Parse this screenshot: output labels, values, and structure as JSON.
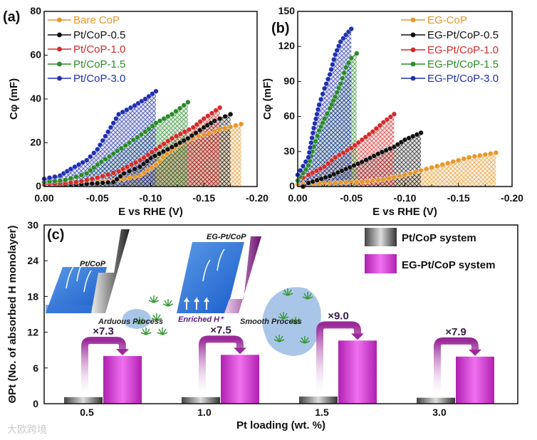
{
  "chart_data": [
    {
      "panel": "(a)",
      "type": "line",
      "xlabel": "E vs RHE (V)",
      "ylabel": "Cφ (mF)",
      "xlim": [
        0,
        -0.2
      ],
      "ylim": [
        0,
        80
      ],
      "xticks": [
        0,
        -0.05,
        -0.1,
        -0.15,
        -0.2
      ],
      "xtick_labels": [
        "0.00",
        "-0.05",
        "-0.10",
        "-0.15",
        "-0.20"
      ],
      "yticks": [
        0,
        20,
        40,
        60,
        80
      ],
      "ytick_labels": [
        "0",
        "20",
        "40",
        "60",
        "80"
      ],
      "legend_position": "top-left",
      "fill": "crosshatch-under-curve",
      "series": [
        {
          "name": "Bare CoP",
          "color": "#e8972a",
          "x": [
            0,
            -0.02,
            -0.05,
            -0.07,
            -0.09,
            -0.105,
            -0.115,
            -0.13,
            -0.145,
            -0.165,
            -0.185
          ],
          "y": [
            1,
            1.5,
            2,
            3,
            5,
            10,
            15,
            20,
            23,
            26,
            28.5
          ]
        },
        {
          "name": "Pt/CoP-0.5",
          "color": "#111111",
          "x": [
            0,
            -0.03,
            -0.05,
            -0.065,
            -0.075,
            -0.09,
            -0.1,
            -0.12,
            -0.135,
            -0.15,
            -0.16,
            -0.175
          ],
          "y": [
            1,
            1,
            1.5,
            2,
            6,
            9,
            13,
            18,
            22,
            27,
            30,
            33
          ]
        },
        {
          "name": "Pt/CoP-1.0",
          "color": "#d42a2a",
          "x": [
            0,
            -0.03,
            -0.05,
            -0.07,
            -0.09,
            -0.105,
            -0.12,
            -0.14,
            -0.15,
            -0.165
          ],
          "y": [
            1,
            2,
            4,
            7,
            12,
            17,
            22,
            27,
            31,
            36
          ]
        },
        {
          "name": "Pt/CoP-1.5",
          "color": "#2a8a2a",
          "x": [
            0,
            -0.02,
            -0.04,
            -0.05,
            -0.065,
            -0.08,
            -0.095,
            -0.105,
            -0.12,
            -0.135
          ],
          "y": [
            2,
            3,
            6,
            10,
            15,
            20,
            25,
            29,
            33,
            38.5
          ]
        },
        {
          "name": "Pt/CoP-3.0",
          "color": "#2030b0",
          "x": [
            0,
            -0.015,
            -0.025,
            -0.04,
            -0.05,
            -0.06,
            -0.07,
            -0.085,
            -0.095,
            -0.105
          ],
          "y": [
            3.5,
            5,
            8,
            12,
            17,
            25,
            33,
            37,
            40,
            43.5
          ]
        }
      ]
    },
    {
      "panel": "(b)",
      "type": "line",
      "xlabel": "E vs RHE (V)",
      "ylabel": "Cφ (mF)",
      "xlim": [
        0,
        -0.2
      ],
      "ylim": [
        0,
        150
      ],
      "xticks": [
        0,
        -0.05,
        -0.1,
        -0.15,
        -0.2
      ],
      "xtick_labels": [
        "0.00",
        "-0.05",
        "-0.10",
        "-0.15",
        "-0.20"
      ],
      "yticks": [
        0,
        30,
        60,
        90,
        120,
        150
      ],
      "ytick_labels": [
        "0",
        "30",
        "60",
        "90",
        "120",
        "150"
      ],
      "legend_position": "top-right",
      "fill": "crosshatch-under-curve",
      "series": [
        {
          "name": "EG-CoP",
          "color": "#e8972a",
          "x": [
            0,
            -0.03,
            -0.06,
            -0.08,
            -0.1,
            -0.12,
            -0.14,
            -0.16,
            -0.185
          ],
          "y": [
            2,
            3,
            4,
            6,
            10,
            15,
            20,
            25,
            29
          ]
        },
        {
          "name": "EG-Pt/CoP-0.5",
          "color": "#111111",
          "x": [
            -0.005,
            -0.01,
            -0.03,
            -0.045,
            -0.06,
            -0.075,
            -0.09,
            -0.1,
            -0.115
          ],
          "y": [
            0,
            3,
            9,
            15,
            21,
            28,
            34,
            40,
            46
          ]
        },
        {
          "name": "EG-Pt/CoP-1.0",
          "color": "#d42a2a",
          "x": [
            0,
            -0.01,
            -0.025,
            -0.035,
            -0.05,
            -0.06,
            -0.07,
            -0.08,
            -0.09
          ],
          "y": [
            5,
            10,
            17,
            25,
            33,
            40,
            47,
            55,
            62
          ]
        },
        {
          "name": "EG-Pt/CoP-1.5",
          "color": "#2a8a2a",
          "x": [
            0,
            -0.01,
            -0.015,
            -0.02,
            -0.025,
            -0.03,
            -0.035,
            -0.04,
            -0.045,
            -0.05,
            -0.055
          ],
          "y": [
            5,
            18,
            34,
            48,
            58,
            67,
            77,
            88,
            102,
            110,
            114
          ]
        },
        {
          "name": "EG-Pt/CoP-3.0",
          "color": "#2030b0",
          "x": [
            0,
            -0.01,
            -0.015,
            -0.02,
            -0.025,
            -0.03,
            -0.035,
            -0.04,
            -0.045,
            -0.05
          ],
          "y": [
            10,
            25,
            50,
            70,
            84,
            96,
            113,
            124,
            130,
            135
          ]
        }
      ]
    },
    {
      "panel": "(c)",
      "type": "bar",
      "xlabel": "Pt loading (wt. %)",
      "ylabel": "ΘPt (No. of absorbed H monolayer)",
      "ylim": [
        0,
        30
      ],
      "yticks": [
        0,
        6,
        12,
        18,
        24,
        30
      ],
      "ytick_labels": [
        "0",
        "6",
        "12",
        "18",
        "24",
        "30"
      ],
      "categories": [
        "0.5",
        "1.0",
        "1.5",
        "3.0"
      ],
      "legend_position": "top-right",
      "series": [
        {
          "name": "Pt/CoP system",
          "color": "#808080",
          "values": [
            1.1,
            1.1,
            1.2,
            1.0
          ]
        },
        {
          "name": "EG-Pt/CoP system",
          "color": "#cc33cc",
          "values": [
            8.0,
            8.2,
            10.6,
            7.9
          ]
        }
      ],
      "annotations": [
        "×7.3",
        "×7.5",
        "×9.0",
        "×7.9"
      ],
      "schematic": {
        "left_label": "Pt/CoP",
        "right_label": "EG-Pt/CoP",
        "enriched": "Enriched H⁺",
        "left_caption": "Arduous Process",
        "right_caption": "Smooth Process"
      }
    }
  ],
  "watermark": "大欧跨境"
}
